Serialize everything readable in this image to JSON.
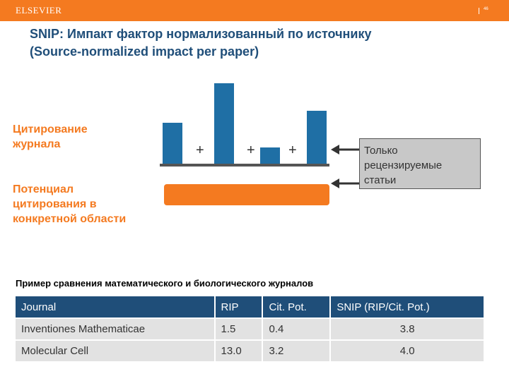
{
  "header": {
    "brand": "ELSEVIER",
    "page_number": "46",
    "accent_color": "#f47a20",
    "primary_color": "#1f4e79"
  },
  "title": {
    "line1": "SNIP: Импакт фактор нормализованный по источнику",
    "line2": "(Source-normalized impact per paper)"
  },
  "diagram": {
    "citation_label": {
      "line1": "Цитирование",
      "line2": "журнала"
    },
    "potential_label": {
      "line1": "Потенциал",
      "line2": "цитирования в",
      "line3": "конкретной области"
    },
    "plus_sign": "+",
    "note": {
      "line1": "Только",
      "line2": "рецензируемые",
      "line3": "статьи"
    }
  },
  "example": {
    "subtitle": "Пример сравнения математического и биологического журналов",
    "headers": [
      "Journal",
      "RIP",
      "Cit. Pot.",
      "SNIP (RIP/Cit. Pot.)"
    ],
    "rows": [
      [
        "Inventiones Mathematicae",
        "1.5",
        "0.4",
        "3.8"
      ],
      [
        "Molecular Cell",
        "13.0",
        "3.2",
        "4.0"
      ]
    ]
  }
}
